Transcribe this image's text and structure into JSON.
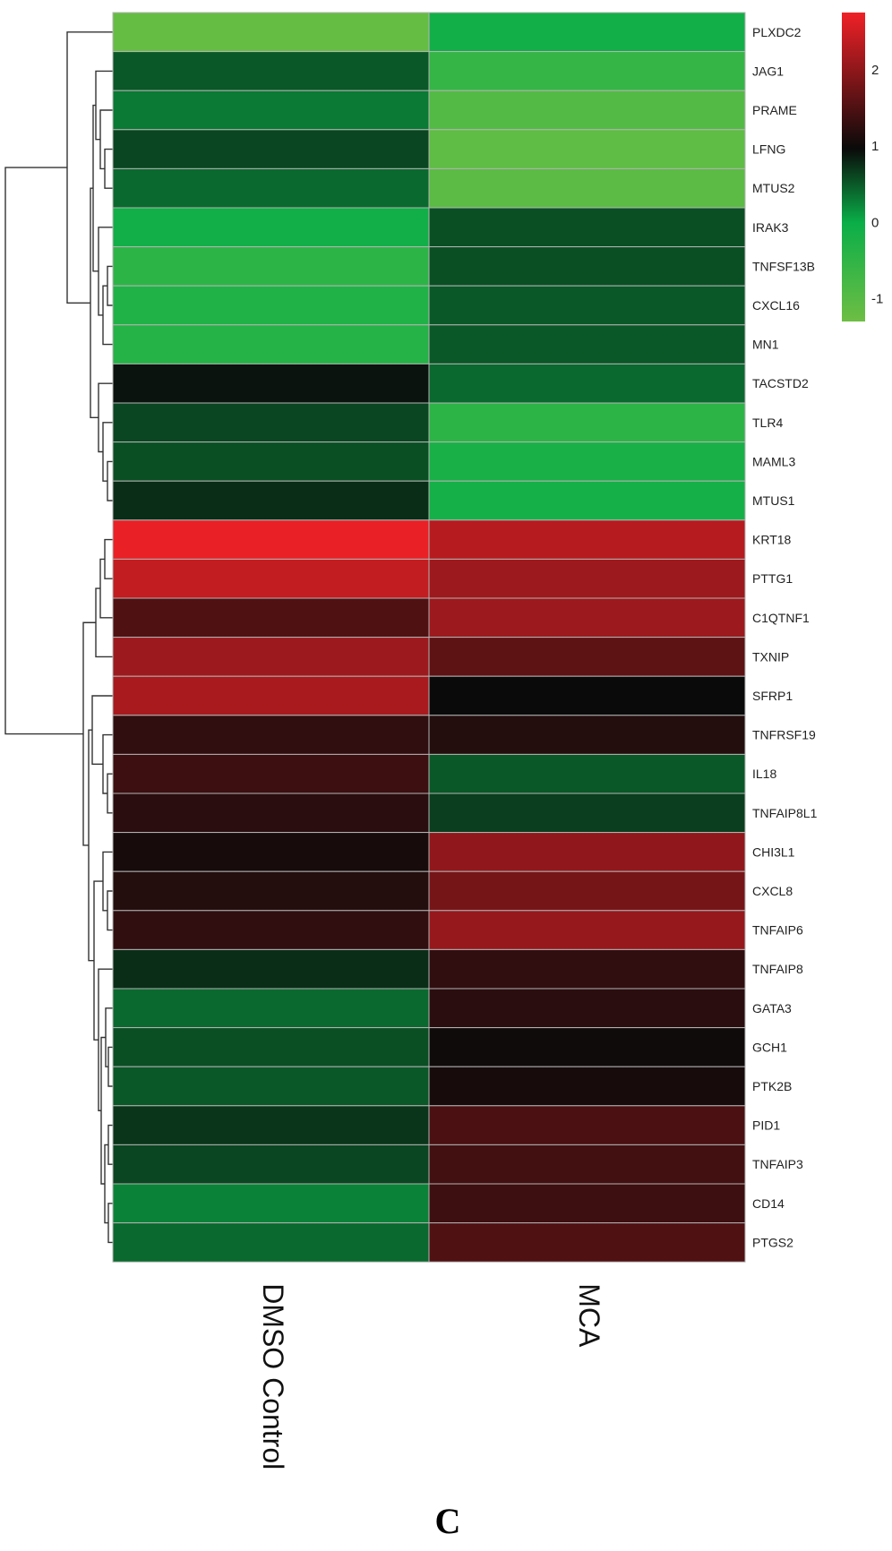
{
  "chart_data": {
    "type": "heatmap",
    "title": "",
    "xlabel": "",
    "ylabel": "",
    "columns": [
      "DMSO Control",
      "MCA"
    ],
    "rows": [
      "PLXDC2",
      "JAG1",
      "PRAME",
      "LFNG",
      "MTUS2",
      "IRAK3",
      "TNFSF13B",
      "CXCL16",
      "MN1",
      "TACSTD2",
      "TLR4",
      "MAML3",
      "MTUS1",
      "KRT18",
      "PTTG1",
      "C1QTNF1",
      "TXNIP",
      "SFRP1",
      "TNFRSF19",
      "IL18",
      "TNFAIP8L1",
      "CHI3L1",
      "CXCL8",
      "TNFAIP6",
      "TNFAIP8",
      "GATA3",
      "GCH1",
      "PTK2B",
      "PID1",
      "TNFAIP3",
      "CD14",
      "PTGS2"
    ],
    "values": [
      [
        -1.2,
        -0.1
      ],
      [
        0.5,
        -0.55
      ],
      [
        0.3,
        -0.95
      ],
      [
        0.6,
        -1.1
      ],
      [
        0.4,
        -1.05
      ],
      [
        -0.1,
        0.55
      ],
      [
        -0.45,
        0.55
      ],
      [
        -0.3,
        0.5
      ],
      [
        -0.35,
        0.5
      ],
      [
        0.9,
        0.4
      ],
      [
        0.6,
        -0.45
      ],
      [
        0.55,
        -0.2
      ],
      [
        0.75,
        -0.15
      ],
      [
        2.7,
        2.3
      ],
      [
        2.4,
        2.1
      ],
      [
        1.5,
        2.1
      ],
      [
        2.1,
        1.6
      ],
      [
        2.2,
        0.95
      ],
      [
        1.25,
        1.15
      ],
      [
        1.35,
        0.5
      ],
      [
        1.2,
        0.65
      ],
      [
        1.05,
        2.0
      ],
      [
        1.15,
        1.8
      ],
      [
        1.25,
        2.05
      ],
      [
        0.75,
        1.25
      ],
      [
        0.4,
        1.2
      ],
      [
        0.55,
        1.0
      ],
      [
        0.5,
        1.05
      ],
      [
        0.7,
        1.45
      ],
      [
        0.6,
        1.4
      ],
      [
        0.25,
        1.35
      ],
      [
        0.4,
        1.5
      ]
    ],
    "color_scale": {
      "min": -1.3,
      "max": 2.75,
      "stops": [
        {
          "value": -1.3,
          "color": "#6ebe44"
        },
        {
          "value": 0.0,
          "color": "#0aae48"
        },
        {
          "value": 0.95,
          "color": "#0a0a0a"
        },
        {
          "value": 2.75,
          "color": "#ef2127"
        }
      ],
      "ticks": [
        -1,
        0,
        1,
        2
      ]
    },
    "dendrogram": "row",
    "legend_position": "top-right"
  },
  "panel_label": "C"
}
